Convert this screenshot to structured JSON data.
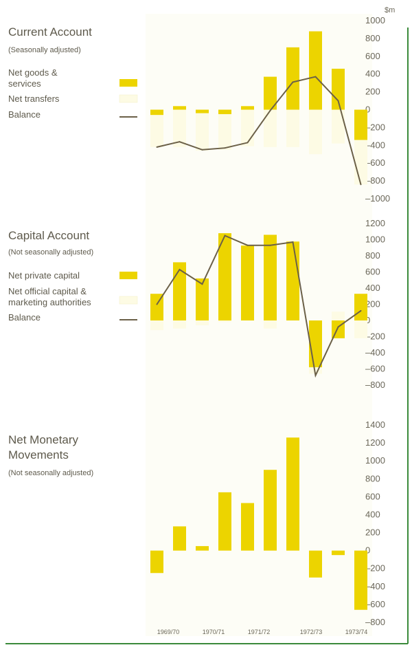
{
  "chart_data": [
    {
      "type": "bar",
      "title": "Current Account",
      "subtitle": "(Seasonally adjusted)",
      "unit": "$m",
      "ylim": [
        -1000,
        1000
      ],
      "yticks": [
        1000,
        800,
        600,
        400,
        200,
        0,
        -200,
        -400,
        -600,
        -800,
        -1000
      ],
      "grid": false,
      "legend_position": "left",
      "stacked": true,
      "categories": [
        "1969/70 H1",
        "1969/70 H2",
        "1970/71 H1",
        "1970/71 H2",
        "1971/72 H1",
        "1971/72 H2",
        "1972/73 H1",
        "1972/73 H2",
        "1973/74 H1",
        "1973/74 H2"
      ],
      "series": [
        {
          "name": "Net goods & services",
          "kind": "bar",
          "color": "#ecd400",
          "values": [
            -60,
            40,
            -40,
            -50,
            40,
            370,
            700,
            880,
            460,
            -340
          ]
        },
        {
          "name": "Net transfers",
          "kind": "bar",
          "color": "#fdfbe4",
          "values": [
            -360,
            -420,
            -420,
            -400,
            -410,
            -420,
            -420,
            -500,
            -380,
            -500
          ]
        },
        {
          "name": "Balance",
          "kind": "line",
          "color": "#6b6048",
          "values": [
            -420,
            -360,
            -450,
            -430,
            -370,
            -10,
            310,
            370,
            100,
            -840
          ]
        }
      ]
    },
    {
      "type": "bar",
      "title": "Capital Account",
      "subtitle": "(Not seasonally adjusted)",
      "ylim": [
        -800,
        1200
      ],
      "yticks": [
        1200,
        1000,
        800,
        600,
        400,
        200,
        0,
        -200,
        -400,
        -600,
        -800
      ],
      "grid": false,
      "legend_position": "left",
      "stacked": true,
      "categories": [
        "1969/70 H1",
        "1969/70 H2",
        "1970/71 H1",
        "1970/71 H2",
        "1971/72 H1",
        "1971/72 H2",
        "1972/73 H1",
        "1972/73 H2",
        "1973/74 H1",
        "1973/74 H2"
      ],
      "series": [
        {
          "name": "Net private capital",
          "kind": "bar",
          "color": "#ecd400",
          "values": [
            330,
            720,
            520,
            1080,
            930,
            1060,
            980,
            -580,
            -220,
            330
          ]
        },
        {
          "name": "Net official capital & marketing authorities",
          "kind": "bar",
          "color": "#fdfbe4",
          "values": [
            -120,
            -100,
            -60,
            -20,
            0,
            -100,
            0,
            -80,
            110,
            -220
          ]
        },
        {
          "name": "Balance",
          "kind": "line",
          "color": "#6b6048",
          "values": [
            200,
            630,
            450,
            1050,
            930,
            930,
            970,
            -680,
            -80,
            120
          ]
        }
      ]
    },
    {
      "type": "bar",
      "title": "Net Monetary Movements",
      "subtitle": "(Not seasonally adjusted)",
      "ylim": [
        -800,
        1400
      ],
      "yticks": [
        1400,
        1200,
        1000,
        800,
        600,
        400,
        200,
        0,
        -200,
        -400,
        -600,
        -800
      ],
      "grid": false,
      "categories": [
        "1969/70 H1",
        "1969/70 H2",
        "1970/71 H1",
        "1970/71 H2",
        "1971/72 H1",
        "1971/72 H2",
        "1972/73 H1",
        "1972/73 H2",
        "1973/74 H1",
        "1973/74 H2"
      ],
      "series": [
        {
          "kind": "bar",
          "color": "#ecd400",
          "values": [
            -250,
            270,
            50,
            650,
            530,
            900,
            1260,
            -300,
            -50,
            -660
          ]
        }
      ]
    }
  ],
  "x_axis_labels": [
    "1969/70",
    "1970/71",
    "1971/72",
    "1972/73",
    "1973/74"
  ]
}
